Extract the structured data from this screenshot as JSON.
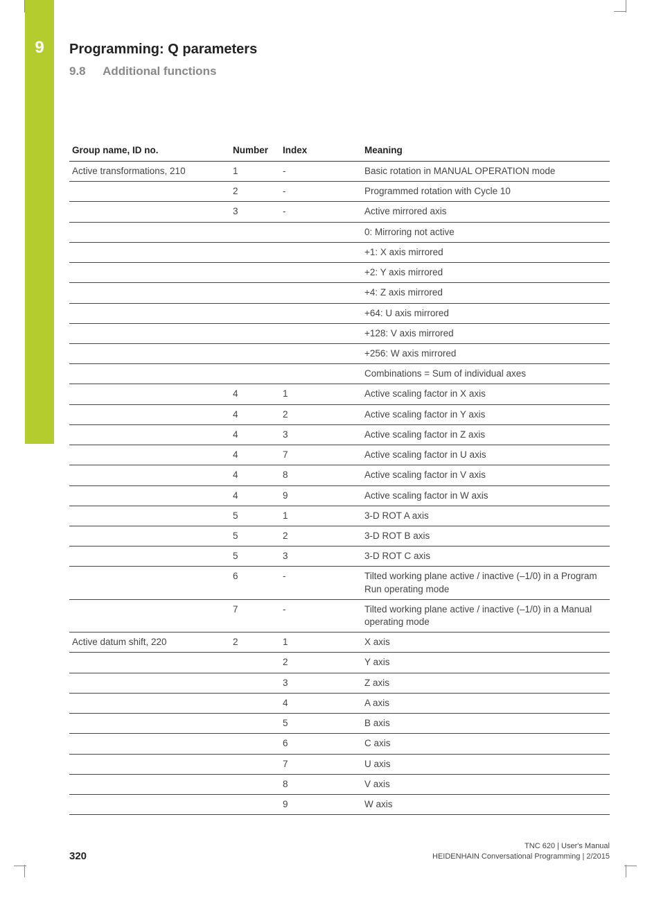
{
  "chapter": {
    "number": "9",
    "title": "Programming: Q parameters"
  },
  "section": {
    "number": "9.8",
    "title": "Additional functions"
  },
  "table": {
    "headers": {
      "group": "Group name, ID no.",
      "number": "Number",
      "index": "Index",
      "meaning": "Meaning"
    },
    "rows": [
      {
        "group": "Active transformations, 210",
        "number": "1",
        "index": "-",
        "meaning": "Basic rotation in MANUAL OPERATION mode"
      },
      {
        "group": "",
        "number": "2",
        "index": "-",
        "meaning": "Programmed rotation with Cycle 10"
      },
      {
        "group": "",
        "number": "3",
        "index": "-",
        "meaning": "Active mirrored axis"
      },
      {
        "group": "",
        "number": "",
        "index": "",
        "meaning": "0: Mirroring not active"
      },
      {
        "group": "",
        "number": "",
        "index": "",
        "meaning": "+1: X axis mirrored"
      },
      {
        "group": "",
        "number": "",
        "index": "",
        "meaning": "+2: Y axis mirrored"
      },
      {
        "group": "",
        "number": "",
        "index": "",
        "meaning": "+4: Z axis mirrored"
      },
      {
        "group": "",
        "number": "",
        "index": "",
        "meaning": "+64: U axis mirrored"
      },
      {
        "group": "",
        "number": "",
        "index": "",
        "meaning": "+128: V axis mirrored"
      },
      {
        "group": "",
        "number": "",
        "index": "",
        "meaning": "+256: W axis mirrored"
      },
      {
        "group": "",
        "number": "",
        "index": "",
        "meaning": "Combinations = Sum of individual axes"
      },
      {
        "group": "",
        "number": "4",
        "index": "1",
        "meaning": "Active scaling factor in X axis"
      },
      {
        "group": "",
        "number": "4",
        "index": "2",
        "meaning": "Active scaling factor in Y axis"
      },
      {
        "group": "",
        "number": "4",
        "index": "3",
        "meaning": "Active scaling factor in Z axis"
      },
      {
        "group": "",
        "number": "4",
        "index": "7",
        "meaning": "Active scaling factor in U axis"
      },
      {
        "group": "",
        "number": "4",
        "index": "8",
        "meaning": "Active scaling factor in V axis"
      },
      {
        "group": "",
        "number": "4",
        "index": "9",
        "meaning": "Active scaling factor in W axis"
      },
      {
        "group": "",
        "number": "5",
        "index": "1",
        "meaning": "3-D ROT A axis"
      },
      {
        "group": "",
        "number": "5",
        "index": "2",
        "meaning": "3-D ROT B axis"
      },
      {
        "group": "",
        "number": "5",
        "index": "3",
        "meaning": "3-D ROT C axis"
      },
      {
        "group": "",
        "number": "6",
        "index": "-",
        "meaning": "Tilted working plane active / inactive (–1/0) in a Program Run operating mode"
      },
      {
        "group": "",
        "number": "7",
        "index": "-",
        "meaning": "Tilted working plane active / inactive (–1/0) in a Manual operating mode"
      },
      {
        "group": "Active datum shift, 220",
        "number": "2",
        "index": "1",
        "meaning": "X axis"
      },
      {
        "group": "",
        "number": "",
        "index": "2",
        "meaning": "Y axis"
      },
      {
        "group": "",
        "number": "",
        "index": "3",
        "meaning": "Z axis"
      },
      {
        "group": "",
        "number": "",
        "index": "4",
        "meaning": "A axis"
      },
      {
        "group": "",
        "number": "",
        "index": "5",
        "meaning": "B axis"
      },
      {
        "group": "",
        "number": "",
        "index": "6",
        "meaning": "C axis"
      },
      {
        "group": "",
        "number": "",
        "index": "7",
        "meaning": "U axis"
      },
      {
        "group": "",
        "number": "",
        "index": "8",
        "meaning": "V axis"
      },
      {
        "group": "",
        "number": "",
        "index": "9",
        "meaning": "W axis"
      }
    ]
  },
  "footer": {
    "page": "320",
    "line1": "TNC 620 | User's Manual",
    "line2": "HEIDENHAIN Conversational Programming | 2/2015"
  },
  "style": {
    "accent_color": "#b5cc2f",
    "text_color": "#333333",
    "header_text_color": "#222222",
    "section_color": "#888888",
    "border_color": "#444444"
  }
}
